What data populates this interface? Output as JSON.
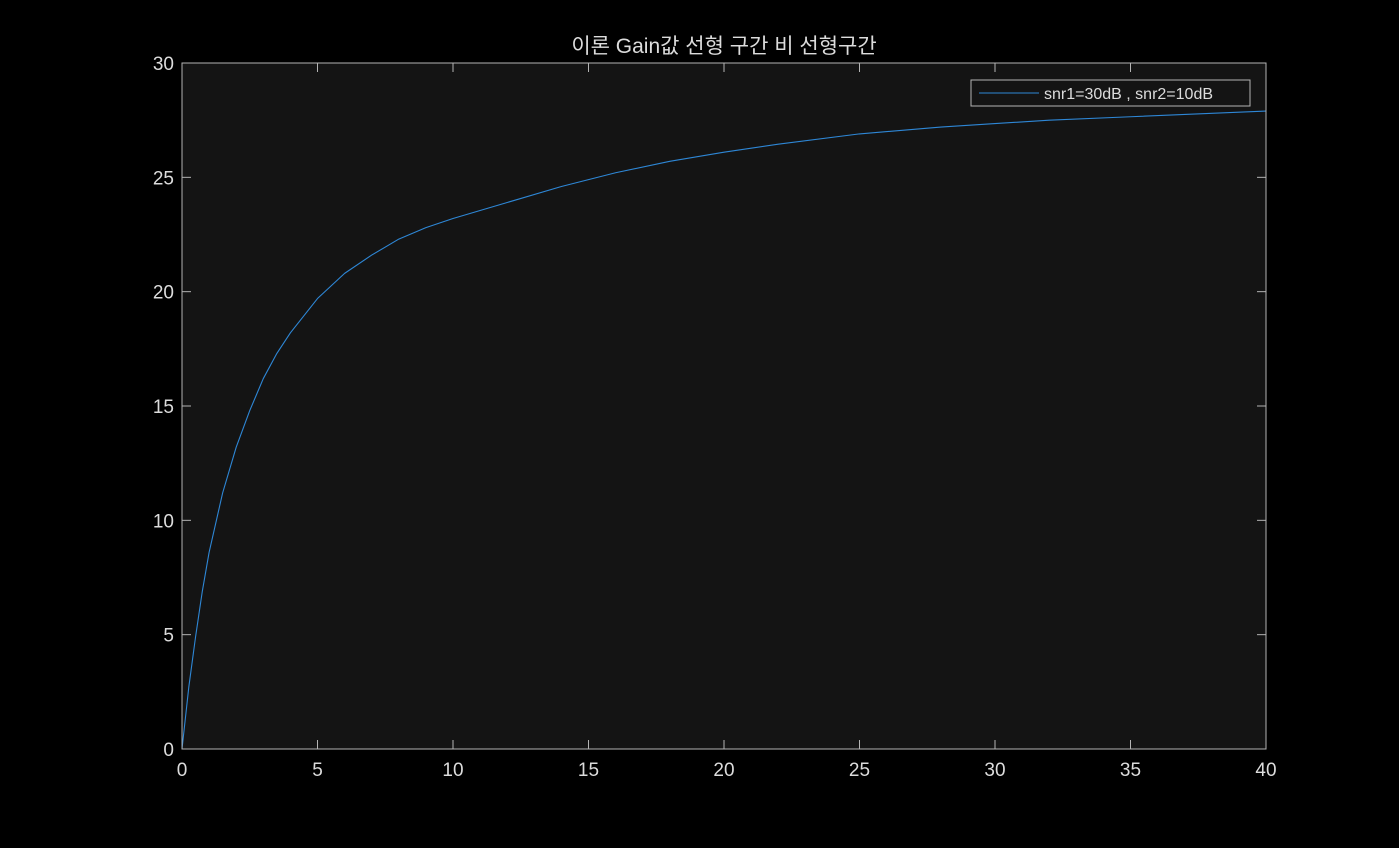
{
  "colors": {
    "figure_background": "#000000",
    "axes_background": "#141414",
    "axes_line": "#b4b4b4",
    "text": "#dcdcdc",
    "series": "#2e87d6"
  },
  "chart_data": {
    "type": "line",
    "title": "이론 Gain값 선형 구간 비 선형구간",
    "xlabel": "",
    "ylabel": "",
    "xlim": [
      0,
      40
    ],
    "ylim": [
      0,
      30
    ],
    "xticks": [
      0,
      5,
      10,
      15,
      20,
      25,
      30,
      35,
      40
    ],
    "yticks": [
      0,
      5,
      10,
      15,
      20,
      25,
      30
    ],
    "grid": false,
    "legend_position": "top-right",
    "series": [
      {
        "name": "snr1=30dB , snr2=10dB",
        "x": [
          0,
          0.25,
          0.5,
          0.75,
          1,
          1.5,
          2,
          2.5,
          3,
          3.5,
          4,
          5,
          6,
          7,
          8,
          9,
          10,
          12,
          14,
          16,
          18,
          20,
          22,
          25,
          28,
          30,
          32,
          35,
          38,
          40
        ],
        "y": [
          0,
          2.7,
          4.9,
          6.9,
          8.6,
          11.2,
          13.2,
          14.8,
          16.2,
          17.3,
          18.2,
          19.7,
          20.8,
          21.6,
          22.3,
          22.8,
          23.2,
          23.9,
          24.6,
          25.2,
          25.7,
          26.1,
          26.45,
          26.9,
          27.2,
          27.35,
          27.5,
          27.65,
          27.8,
          27.9
        ]
      }
    ]
  }
}
